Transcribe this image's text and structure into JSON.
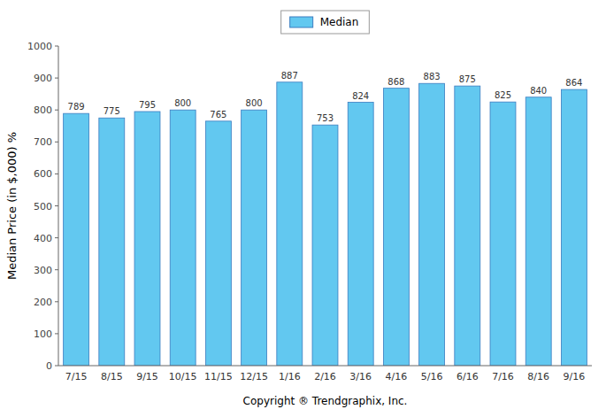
{
  "chart_data": {
    "type": "bar",
    "categories": [
      "7/15",
      "8/15",
      "9/15",
      "10/15",
      "11/15",
      "12/15",
      "1/16",
      "2/16",
      "3/16",
      "4/16",
      "5/16",
      "6/16",
      "7/16",
      "8/16",
      "9/16"
    ],
    "series": [
      {
        "name": "Median",
        "color": "#62C8F0",
        "values": [
          789,
          775,
          795,
          800,
          765,
          800,
          887,
          753,
          824,
          868,
          883,
          875,
          825,
          840,
          864
        ]
      }
    ],
    "y_label": "Median Price (in $,000) %",
    "x_label": "Copyright ® Trendgraphix, Inc.",
    "ylim": [
      0,
      1000
    ],
    "yticks": [
      0,
      100,
      200,
      300,
      400,
      500,
      600,
      700,
      800,
      900,
      1000
    ],
    "grid": false,
    "legend": "top",
    "data_labels": true
  }
}
